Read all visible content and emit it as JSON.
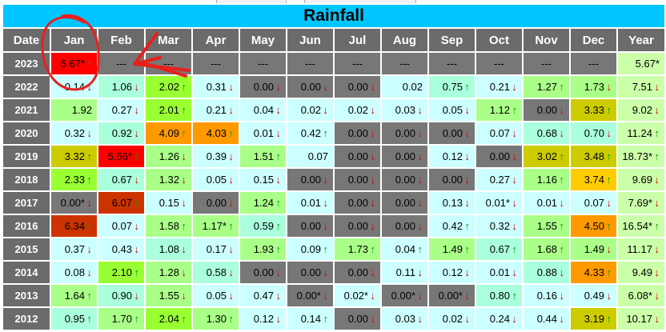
{
  "table": {
    "title": "Rainfall",
    "headers": [
      "Date",
      "Jan",
      "Feb",
      "Mar",
      "Apr",
      "May",
      "Jun",
      "Jul",
      "Aug",
      "Sep",
      "Oct",
      "Nov",
      "Dec",
      "Year"
    ],
    "rows": [
      {
        "year": "2023",
        "cells": [
          {
            "text": "5.67*",
            "arrow": "up",
            "bg": "#ff0000"
          },
          {
            "text": "---",
            "arrow": "",
            "bg": "#777777"
          },
          {
            "text": "---",
            "arrow": "",
            "bg": "#777777"
          },
          {
            "text": "---",
            "arrow": "",
            "bg": "#777777"
          },
          {
            "text": "---",
            "arrow": "",
            "bg": "#777777"
          },
          {
            "text": "---",
            "arrow": "",
            "bg": "#777777"
          },
          {
            "text": "---",
            "arrow": "",
            "bg": "#777777"
          },
          {
            "text": "---",
            "arrow": "",
            "bg": "#777777"
          },
          {
            "text": "---",
            "arrow": "",
            "bg": "#777777"
          },
          {
            "text": "---",
            "arrow": "",
            "bg": "#777777"
          },
          {
            "text": "---",
            "arrow": "",
            "bg": "#777777"
          },
          {
            "text": "---",
            "arrow": "",
            "bg": "#777777"
          },
          {
            "text": "5.67*",
            "arrow": "",
            "bg": "#ccffaa"
          }
        ]
      },
      {
        "year": "2022",
        "cells": [
          {
            "text": "0.14",
            "arrow": "down",
            "bg": "#ccffff"
          },
          {
            "text": "1.06",
            "arrow": "down",
            "bg": "#aaffdd"
          },
          {
            "text": "2.02",
            "arrow": "up",
            "bg": "#99ff33"
          },
          {
            "text": "0.31",
            "arrow": "down",
            "bg": "#ccffff"
          },
          {
            "text": "0.00",
            "arrow": "down",
            "bg": "#777777"
          },
          {
            "text": "0.00",
            "arrow": "down",
            "bg": "#777777"
          },
          {
            "text": "0.00",
            "arrow": "down",
            "bg": "#777777"
          },
          {
            "text": "0.02",
            "arrow": "",
            "bg": "#ccffff"
          },
          {
            "text": "0.75",
            "arrow": "up",
            "bg": "#aaffdd"
          },
          {
            "text": "0.21",
            "arrow": "down",
            "bg": "#ccffff"
          },
          {
            "text": "1.27",
            "arrow": "up",
            "bg": "#aaff88"
          },
          {
            "text": "1.73",
            "arrow": "down",
            "bg": "#aaff88"
          },
          {
            "text": "7.51",
            "arrow": "down",
            "bg": "#ccffaa"
          }
        ]
      },
      {
        "year": "2021",
        "cells": [
          {
            "text": "1.92",
            "arrow": "",
            "bg": "#aaff88"
          },
          {
            "text": "0.27",
            "arrow": "down",
            "bg": "#ccffff"
          },
          {
            "text": "2.01",
            "arrow": "up",
            "bg": "#99ff33"
          },
          {
            "text": "0.21",
            "arrow": "down",
            "bg": "#ccffff"
          },
          {
            "text": "0.04",
            "arrow": "down",
            "bg": "#ccffff"
          },
          {
            "text": "0.02",
            "arrow": "down",
            "bg": "#ccffff"
          },
          {
            "text": "0.02",
            "arrow": "down",
            "bg": "#ccffff"
          },
          {
            "text": "0.03",
            "arrow": "down",
            "bg": "#ccffff"
          },
          {
            "text": "0.05",
            "arrow": "down",
            "bg": "#ccffff"
          },
          {
            "text": "1.12",
            "arrow": "up",
            "bg": "#aaff88"
          },
          {
            "text": "0.00",
            "arrow": "down",
            "bg": "#777777"
          },
          {
            "text": "3.33",
            "arrow": "up",
            "bg": "#cccc00"
          },
          {
            "text": "9.02",
            "arrow": "down",
            "bg": "#ccffaa"
          }
        ]
      },
      {
        "year": "2020",
        "cells": [
          {
            "text": "0.32",
            "arrow": "down",
            "bg": "#ccffff"
          },
          {
            "text": "0.92",
            "arrow": "down",
            "bg": "#aaffdd"
          },
          {
            "text": "4.09",
            "arrow": "up",
            "bg": "#ff9900"
          },
          {
            "text": "4.03",
            "arrow": "up",
            "bg": "#ff9900"
          },
          {
            "text": "0.01",
            "arrow": "down",
            "bg": "#ccffff"
          },
          {
            "text": "0.42",
            "arrow": "up",
            "bg": "#ccffff"
          },
          {
            "text": "0.00",
            "arrow": "down",
            "bg": "#777777"
          },
          {
            "text": "0.00",
            "arrow": "down",
            "bg": "#777777"
          },
          {
            "text": "0.00",
            "arrow": "down",
            "bg": "#777777"
          },
          {
            "text": "0.07",
            "arrow": "down",
            "bg": "#ccffff"
          },
          {
            "text": "0.68",
            "arrow": "down",
            "bg": "#aaffdd"
          },
          {
            "text": "0.70",
            "arrow": "down",
            "bg": "#aaffdd"
          },
          {
            "text": "11.24",
            "arrow": "up",
            "bg": "#ccffaa"
          }
        ]
      },
      {
        "year": "2019",
        "cells": [
          {
            "text": "3.32",
            "arrow": "up",
            "bg": "#cccc00"
          },
          {
            "text": "5.56*",
            "arrow": "up",
            "bg": "#ff0000"
          },
          {
            "text": "1.26",
            "arrow": "down",
            "bg": "#aaff88"
          },
          {
            "text": "0.39",
            "arrow": "down",
            "bg": "#ccffff"
          },
          {
            "text": "1.51",
            "arrow": "up",
            "bg": "#aaff88"
          },
          {
            "text": "0.07",
            "arrow": "",
            "bg": "#ccffff"
          },
          {
            "text": "0.00",
            "arrow": "down",
            "bg": "#777777"
          },
          {
            "text": "0.00",
            "arrow": "down",
            "bg": "#777777"
          },
          {
            "text": "0.12",
            "arrow": "down",
            "bg": "#ccffff"
          },
          {
            "text": "0.00",
            "arrow": "down",
            "bg": "#777777"
          },
          {
            "text": "3.02",
            "arrow": "up",
            "bg": "#cccc00"
          },
          {
            "text": "3.48",
            "arrow": "up",
            "bg": "#cccc00"
          },
          {
            "text": "18.73*",
            "arrow": "up",
            "bg": "#ccffaa"
          }
        ]
      },
      {
        "year": "2018",
        "cells": [
          {
            "text": "2.33",
            "arrow": "up",
            "bg": "#99ff33"
          },
          {
            "text": "0.67",
            "arrow": "down",
            "bg": "#aaffdd"
          },
          {
            "text": "1.32",
            "arrow": "down",
            "bg": "#aaff88"
          },
          {
            "text": "0.05",
            "arrow": "down",
            "bg": "#ccffff"
          },
          {
            "text": "0.15",
            "arrow": "down",
            "bg": "#ccffff"
          },
          {
            "text": "0.00",
            "arrow": "down",
            "bg": "#777777"
          },
          {
            "text": "0.00",
            "arrow": "down",
            "bg": "#777777"
          },
          {
            "text": "0.00",
            "arrow": "down",
            "bg": "#777777"
          },
          {
            "text": "0.00",
            "arrow": "down",
            "bg": "#777777"
          },
          {
            "text": "0.27",
            "arrow": "down",
            "bg": "#ccffff"
          },
          {
            "text": "1.16",
            "arrow": "up",
            "bg": "#aaff88"
          },
          {
            "text": "3.74",
            "arrow": "up",
            "bg": "#ffcc00"
          },
          {
            "text": "9.69",
            "arrow": "down",
            "bg": "#ccffaa"
          }
        ]
      },
      {
        "year": "2017",
        "cells": [
          {
            "text": "0.00*",
            "arrow": "down",
            "bg": "#777777"
          },
          {
            "text": "6.07",
            "arrow": "up",
            "bg": "#cc3300"
          },
          {
            "text": "0.15",
            "arrow": "down",
            "bg": "#ccffff"
          },
          {
            "text": "0.00",
            "arrow": "down",
            "bg": "#777777"
          },
          {
            "text": "1.24",
            "arrow": "up",
            "bg": "#aaff88"
          },
          {
            "text": "0.01",
            "arrow": "down",
            "bg": "#ccffff"
          },
          {
            "text": "0.00",
            "arrow": "down",
            "bg": "#777777"
          },
          {
            "text": "0.00",
            "arrow": "down",
            "bg": "#777777"
          },
          {
            "text": "0.13",
            "arrow": "down",
            "bg": "#ccffff"
          },
          {
            "text": "0.01*",
            "arrow": "down",
            "bg": "#ccffff"
          },
          {
            "text": "0.01",
            "arrow": "down",
            "bg": "#ccffff"
          },
          {
            "text": "0.07",
            "arrow": "down",
            "bg": "#ccffff"
          },
          {
            "text": "7.69*",
            "arrow": "down",
            "bg": "#ccffaa"
          }
        ]
      },
      {
        "year": "2016",
        "cells": [
          {
            "text": "6.34",
            "arrow": "up",
            "bg": "#cc3300"
          },
          {
            "text": "0.07",
            "arrow": "down",
            "bg": "#ccffff"
          },
          {
            "text": "1.58",
            "arrow": "up",
            "bg": "#aaff88"
          },
          {
            "text": "1.17*",
            "arrow": "up",
            "bg": "#aaff88"
          },
          {
            "text": "0.59",
            "arrow": "up",
            "bg": "#aaffdd"
          },
          {
            "text": "0.00",
            "arrow": "down",
            "bg": "#777777"
          },
          {
            "text": "0.00",
            "arrow": "down",
            "bg": "#777777"
          },
          {
            "text": "0.00",
            "arrow": "down",
            "bg": "#777777"
          },
          {
            "text": "0.42",
            "arrow": "up",
            "bg": "#ccffff"
          },
          {
            "text": "0.32",
            "arrow": "down",
            "bg": "#ccffff"
          },
          {
            "text": "1.55",
            "arrow": "up",
            "bg": "#aaff88"
          },
          {
            "text": "4.50",
            "arrow": "up",
            "bg": "#ff9900"
          },
          {
            "text": "16.54*",
            "arrow": "up",
            "bg": "#ccffaa"
          }
        ]
      },
      {
        "year": "2015",
        "cells": [
          {
            "text": "0.37",
            "arrow": "down",
            "bg": "#ccffff"
          },
          {
            "text": "0.43",
            "arrow": "down",
            "bg": "#ccffff"
          },
          {
            "text": "1.08",
            "arrow": "down",
            "bg": "#aaffdd"
          },
          {
            "text": "0.17",
            "arrow": "down",
            "bg": "#ccffff"
          },
          {
            "text": "1.93",
            "arrow": "up",
            "bg": "#aaff88"
          },
          {
            "text": "0.09",
            "arrow": "up",
            "bg": "#ccffff"
          },
          {
            "text": "1.73",
            "arrow": "up",
            "bg": "#aaff88"
          },
          {
            "text": "0.04",
            "arrow": "up",
            "bg": "#ccffff"
          },
          {
            "text": "1.49",
            "arrow": "up",
            "bg": "#aaff88"
          },
          {
            "text": "0.67",
            "arrow": "up",
            "bg": "#aaffdd"
          },
          {
            "text": "1.68",
            "arrow": "up",
            "bg": "#aaff88"
          },
          {
            "text": "1.49",
            "arrow": "down",
            "bg": "#aaff88"
          },
          {
            "text": "11.17",
            "arrow": "down",
            "bg": "#ccffaa"
          }
        ]
      },
      {
        "year": "2014",
        "cells": [
          {
            "text": "0.08",
            "arrow": "down",
            "bg": "#ccffff"
          },
          {
            "text": "2.10",
            "arrow": "up",
            "bg": "#99ff33"
          },
          {
            "text": "1.28",
            "arrow": "down",
            "bg": "#aaff88"
          },
          {
            "text": "0.58",
            "arrow": "down",
            "bg": "#aaffdd"
          },
          {
            "text": "0.00",
            "arrow": "down",
            "bg": "#777777"
          },
          {
            "text": "0.00",
            "arrow": "down",
            "bg": "#777777"
          },
          {
            "text": "0.00",
            "arrow": "down",
            "bg": "#777777"
          },
          {
            "text": "0.11",
            "arrow": "down",
            "bg": "#ccffff"
          },
          {
            "text": "0.12",
            "arrow": "down",
            "bg": "#ccffff"
          },
          {
            "text": "0.01",
            "arrow": "down",
            "bg": "#ccffff"
          },
          {
            "text": "0.88",
            "arrow": "down",
            "bg": "#aaffdd"
          },
          {
            "text": "4.33",
            "arrow": "up",
            "bg": "#ff9900"
          },
          {
            "text": "9.49",
            "arrow": "down",
            "bg": "#ccffaa"
          }
        ]
      },
      {
        "year": "2013",
        "cells": [
          {
            "text": "1.64",
            "arrow": "up",
            "bg": "#aaff88"
          },
          {
            "text": "0.90",
            "arrow": "down",
            "bg": "#aaffdd"
          },
          {
            "text": "1.55",
            "arrow": "down",
            "bg": "#aaff88"
          },
          {
            "text": "0.05",
            "arrow": "down",
            "bg": "#ccffff"
          },
          {
            "text": "0.47",
            "arrow": "down",
            "bg": "#ccffff"
          },
          {
            "text": "0.00*",
            "arrow": "down",
            "bg": "#777777"
          },
          {
            "text": "0.02*",
            "arrow": "down",
            "bg": "#ccffff"
          },
          {
            "text": "0.00*",
            "arrow": "down",
            "bg": "#777777"
          },
          {
            "text": "0.00*",
            "arrow": "down",
            "bg": "#777777"
          },
          {
            "text": "0.80",
            "arrow": "up",
            "bg": "#aaffdd"
          },
          {
            "text": "0.16",
            "arrow": "down",
            "bg": "#ccffff"
          },
          {
            "text": "0.49",
            "arrow": "down",
            "bg": "#ccffff"
          },
          {
            "text": "6.08*",
            "arrow": "down",
            "bg": "#ccffaa"
          }
        ]
      },
      {
        "year": "2012",
        "cells": [
          {
            "text": "0.95",
            "arrow": "up",
            "bg": "#aaffdd"
          },
          {
            "text": "1.70",
            "arrow": "up",
            "bg": "#aaff88"
          },
          {
            "text": "2.04",
            "arrow": "up",
            "bg": "#99ff33"
          },
          {
            "text": "1.30",
            "arrow": "up",
            "bg": "#aaff88"
          },
          {
            "text": "0.12",
            "arrow": "down",
            "bg": "#ccffff"
          },
          {
            "text": "0.14",
            "arrow": "up",
            "bg": "#ccffff"
          },
          {
            "text": "0.00",
            "arrow": "down",
            "bg": "#777777"
          },
          {
            "text": "0.03",
            "arrow": "down",
            "bg": "#ccffff"
          },
          {
            "text": "0.02",
            "arrow": "down",
            "bg": "#ccffff"
          },
          {
            "text": "0.24",
            "arrow": "down",
            "bg": "#ccffff"
          },
          {
            "text": "0.44",
            "arrow": "down",
            "bg": "#ccffff"
          },
          {
            "text": "3.19",
            "arrow": "up",
            "bg": "#cccc00"
          },
          {
            "text": "10.17",
            "arrow": "down",
            "bg": "#ccffaa"
          }
        ]
      }
    ]
  },
  "colors": {
    "header_bg": "#6b6b6b",
    "title_bg": "#00c6ff",
    "annotation": "#e8201c",
    "up": "#0a9a0a",
    "down": "#d60000"
  }
}
